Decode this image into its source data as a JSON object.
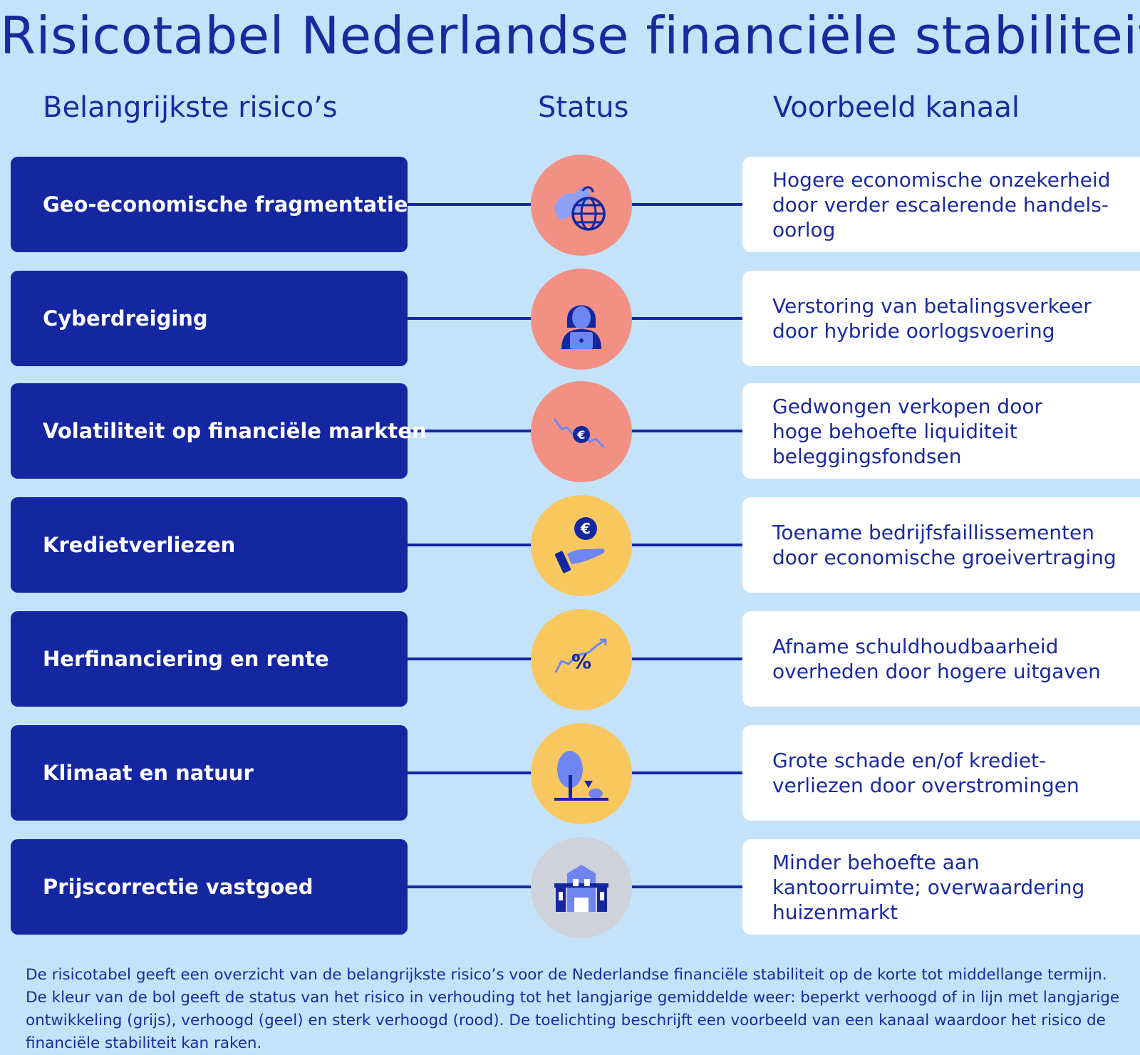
{
  "title": "Risicotabel Nederlandse financiële stabiliteit",
  "columns": {
    "risks": "Belangrijkste risico’s",
    "status": "Status",
    "channel": "Voorbeeld kanaal"
  },
  "rows": [
    {
      "risk": "Geo-economische fragmentatie",
      "status": "rood",
      "icon": "globe-icon",
      "channel": "Hogere economische onzekerheid\ndoor verder escalerende handels-\noorlog"
    },
    {
      "risk": "Cyberdreiging",
      "status": "rood",
      "icon": "hacker-icon",
      "channel": "Verstoring van betalingsverkeer\ndoor hybride oorlogsvoering"
    },
    {
      "risk": "Volatiliteit op financiële markten",
      "status": "rood",
      "icon": "euro-decline-icon",
      "channel": "Gedwongen verkopen door\nhoge behoefte liquiditeit\nbeleggingsfondsen"
    },
    {
      "risk": "Kredietverliezen",
      "status": "geel",
      "icon": "hand-euro-icon",
      "channel": "Toename bedrijfsfaillissementen\ndoor economische groeivertraging"
    },
    {
      "risk": "Herfinanciering en rente",
      "status": "geel",
      "icon": "percent-trend-icon",
      "channel": "Afname schuldhoudbaarheid\noverheden door hogere uitgaven"
    },
    {
      "risk": "Klimaat en natuur",
      "status": "geel",
      "icon": "tree-nature-icon",
      "channel": "Grote schade en/of krediet-\nverliezen door overstromingen"
    },
    {
      "risk": "Prijscorrectie vastgoed",
      "status": "grijs",
      "icon": "building-icon",
      "channel": "Minder behoefte aan\nkantoorruimte; overwaardering\nhuizenmarkt"
    }
  ],
  "colors": {
    "background": "#c4e3fa",
    "navy": "#1427a0",
    "red": "#f29084",
    "yellow": "#f8c85f",
    "grey": "#cfd2db"
  },
  "footnote": "De risicotabel geeft een overzicht van de belangrijkste risico’s voor de Nederlandse financiële stabiliteit op de korte tot middellange termijn. De kleur van de bol geeft de status van het risico in verhouding tot het langjarige gemiddelde weer: beperkt verhoogd of in lijn met langjarige ontwikkeling (grijs), verhoogd (geel) en sterk verhoogd (rood). De toelichting beschrijft een voorbeeld van een kanaal waardoor het risico de financiële stabiliteit kan raken."
}
